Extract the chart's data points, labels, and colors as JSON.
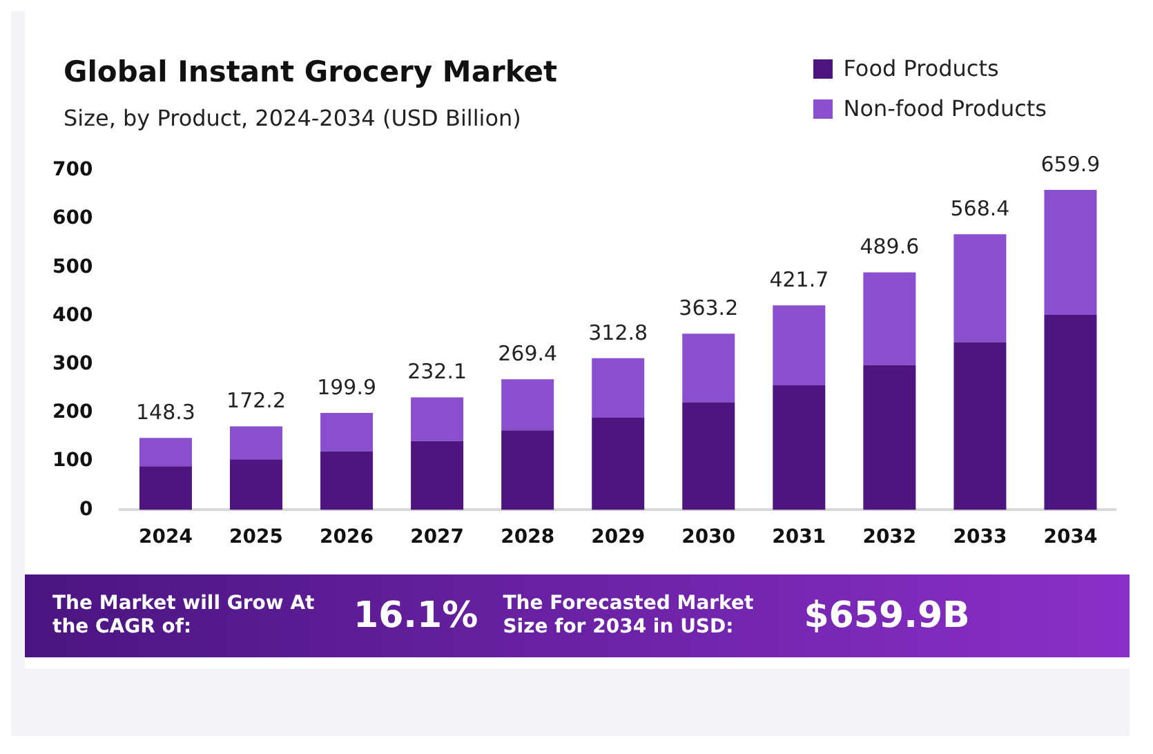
{
  "chart_data": {
    "type": "bar",
    "title": "Global Instant Grocery Market",
    "subtitle": "Size, by Product, 2024-2034 (USD Billion)",
    "categories": [
      "2024",
      "2025",
      "2026",
      "2027",
      "2028",
      "2029",
      "2030",
      "2031",
      "2032",
      "2033",
      "2034"
    ],
    "series": [
      {
        "name": "Food Products",
        "color": "#4e1580",
        "values": [
          90,
          104,
          121,
          142,
          164,
          190,
          222,
          257,
          299,
          346,
          402
        ]
      },
      {
        "name": "Non-food Products",
        "color": "#8a4fce",
        "values": [
          58.3,
          68.2,
          78.9,
          90.1,
          105.4,
          122.8,
          141.2,
          164.7,
          190.6,
          222.4,
          257.9
        ]
      }
    ],
    "stacked": true,
    "totals": [
      "148.3",
      "172.2",
      "199.9",
      "232.1",
      "269.4",
      "312.8",
      "363.2",
      "421.7",
      "489.6",
      "568.4",
      "659.9"
    ],
    "ylim": [
      0,
      700
    ],
    "yticks": [
      0,
      100,
      200,
      300,
      400,
      500,
      600,
      700
    ],
    "grid": false,
    "legend": "top right",
    "annotations": [
      "The Market will Grow At the CAGR of:",
      "16.1%",
      "The Forecasted Market Size for 2034 in USD:",
      "$659.9B"
    ]
  }
}
